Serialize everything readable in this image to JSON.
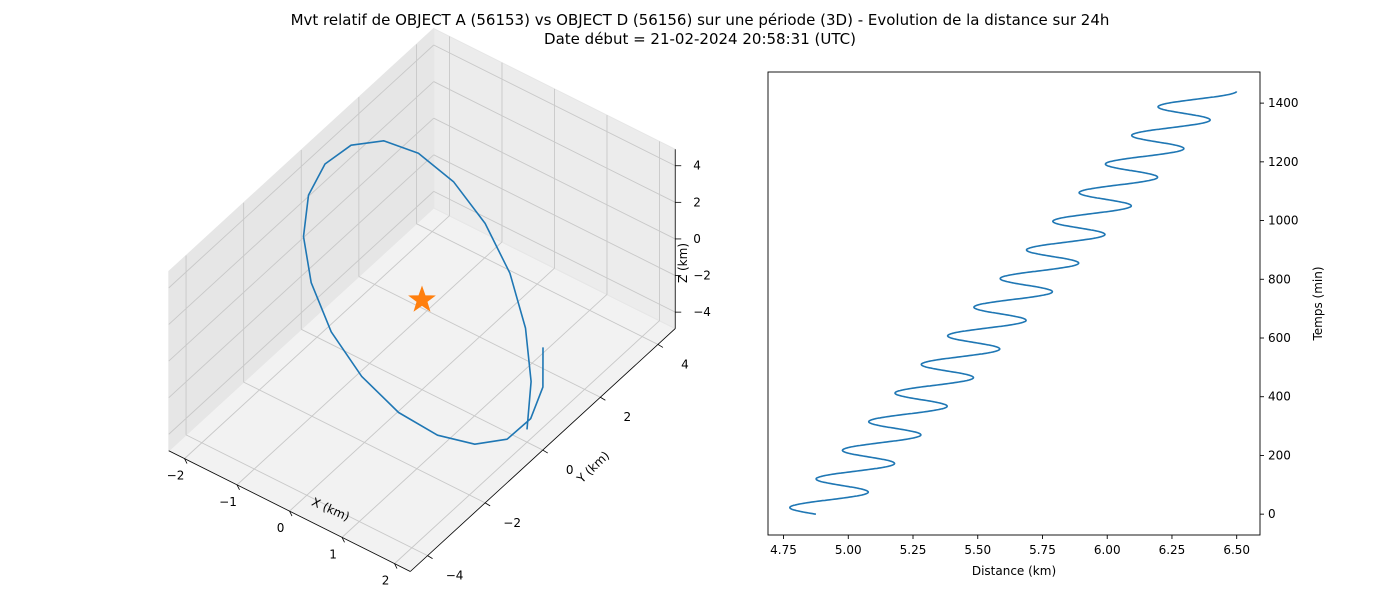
{
  "figure": {
    "title_line1": "Mvt relatif de OBJECT A (56153) vs OBJECT D (56156) sur une période (3D) - Evolution de la distance sur 24h",
    "title_line2": "Date début = 21-02-2024 20:58:31 (UTC)"
  },
  "colors": {
    "series": "#1f77b4",
    "marker": "#ff7f0e",
    "pane": "#f2f2f2",
    "grid": "#cccccc"
  },
  "chart_data": [
    {
      "type": "line3d",
      "xlabel": "X (km)",
      "ylabel": "Y (km)",
      "zlabel": "Z (km)",
      "xlim": [
        -2.3,
        2.3
      ],
      "ylim": [
        -4.6,
        4.6
      ],
      "zlim": [
        -4.9,
        4.9
      ],
      "xticks": [
        "−2",
        "−1",
        "0",
        "1",
        "2"
      ],
      "yticks": [
        "−4",
        "−2",
        "0",
        "2",
        "4"
      ],
      "zticks": [
        "−4",
        "−2",
        "0",
        "2",
        "4"
      ],
      "grid": true,
      "marker": {
        "symbol": "star",
        "x": 0,
        "y": 0,
        "z": 0
      },
      "series": [
        {
          "x": [
            2.0,
            1.53,
            0.94,
            0.28,
            -0.4,
            -1.03,
            -1.55,
            -1.9,
            -2.07,
            -2.04,
            -1.8,
            -1.38,
            -0.81,
            -0.15,
            0.53,
            1.15,
            1.64,
            1.95,
            2.06,
            1.95,
            1.64,
            1.17
          ],
          "y": [
            0.0,
            1.0,
            1.88,
            2.54,
            2.92,
            2.97,
            2.7,
            2.13,
            1.31,
            0.35,
            -0.66,
            -1.6,
            -2.37,
            -2.88,
            -3.06,
            -2.91,
            -2.45,
            -1.72,
            -0.8,
            0.22,
            1.21,
            2.07
          ],
          "z": [
            -4.2,
            -3.7,
            -2.9,
            -1.8,
            -0.6,
            0.7,
            1.9,
            2.9,
            3.6,
            4.0,
            4.1,
            3.8,
            3.2,
            2.2,
            1.0,
            -0.3,
            -1.5,
            -2.6,
            -3.5,
            -4.0,
            -4.15,
            -3.9
          ]
        }
      ]
    },
    {
      "type": "line",
      "xlabel": "Distance (km)",
      "ylabel": "Temps (min)",
      "xlim": [
        4.69,
        6.59
      ],
      "ylim": [
        -71,
        1506
      ],
      "xticks": [
        "4.75",
        "5.00",
        "5.25",
        "5.50",
        "5.75",
        "6.00",
        "6.25",
        "6.50"
      ],
      "yticks": [
        "0",
        "200",
        "400",
        "600",
        "800",
        "1000",
        "1200",
        "1400"
      ],
      "y_axis_side": "right",
      "grid": false,
      "series": [
        {
          "description_points": "distance oscillates with ~97 min period and ±0.125 km amplitude around a mean rising linearly from 4.875 to 6.375 km",
          "t_start": 0,
          "t_end": 1440,
          "mean_start": 4.875,
          "mean_end": 6.375,
          "amplitude": 0.125,
          "period_min": 97.5,
          "phase_min": 0
        }
      ]
    }
  ]
}
